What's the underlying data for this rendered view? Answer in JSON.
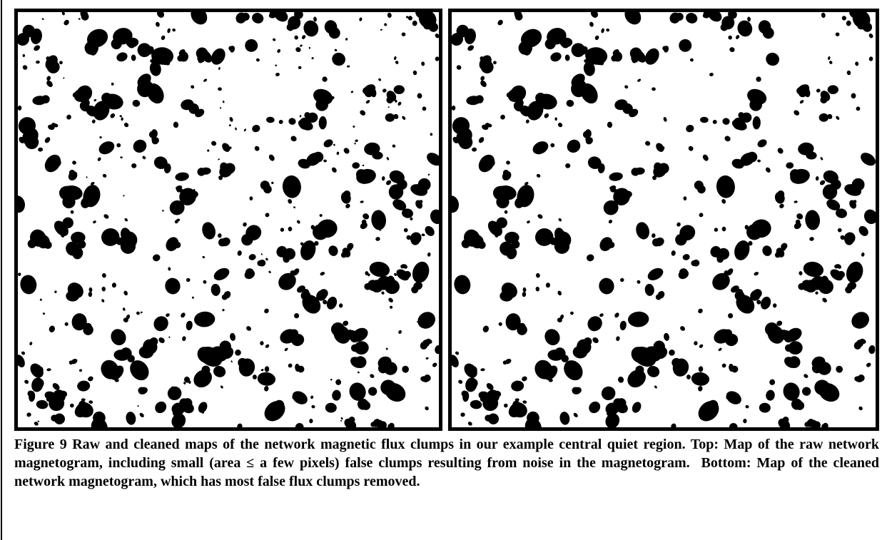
{
  "figure": {
    "caption": "Figure 9 Raw and cleaned maps of the network magnetic flux clumps in our example central quiet region. Top: Map of the raw network magnetogram, including small (area ≤ a few pixels) false clumps resulting from noise in the magnetogram.  Bottom: Map of the cleaned network magnetogram, which has most false flux clumps removed."
  }
}
